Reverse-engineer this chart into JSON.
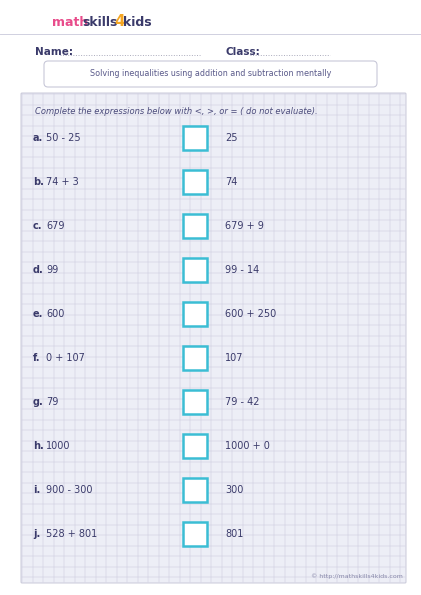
{
  "title": "Solving inequalities using addition and subtraction mentally",
  "instruction": "Complete the expressions below with <, >, or = ( do not evaluate).",
  "name_label": "Name:",
  "class_label": "Class:",
  "footer": "© http://mathskills4kids.com",
  "rows": [
    {
      "letter": "a.",
      "left": "50 - 25",
      "right": "25"
    },
    {
      "letter": "b.",
      "left": "74 + 3",
      "right": "74"
    },
    {
      "letter": "c.",
      "left": "679",
      "right": "679 + 9"
    },
    {
      "letter": "d.",
      "left": "99",
      "right": "99 - 14"
    },
    {
      "letter": "e.",
      "left": "600",
      "right": "600 + 250"
    },
    {
      "letter": "f.",
      "left": "0 + 107",
      "right": "107"
    },
    {
      "letter": "g.",
      "left": "79",
      "right": "79 - 42"
    },
    {
      "letter": "h.",
      "left": "1000",
      "right": "1000 + 0"
    },
    {
      "letter": "i.",
      "left": "900 - 300",
      "right": "300"
    },
    {
      "letter": "j.",
      "left": "528 + 801",
      "right": "801"
    }
  ],
  "grid_color": "#c8c8dc",
  "box_color": "#3bbdd4",
  "text_color": "#3a3a6a",
  "title_color": "#5a5a8a",
  "logo_math_color": "#e84c8b",
  "logo_skills_color": "#3a3a6a",
  "logo_4_color": "#f5a623",
  "logo_kids_color": "#3a3a6a",
  "worksheet_bg": "#edeef6",
  "white": "#ffffff",
  "footer_color": "#8888aa",
  "dotted_color": "#aaaabc",
  "title_box_border": "#c8c8d8",
  "instr_color": "#4a4a7a"
}
